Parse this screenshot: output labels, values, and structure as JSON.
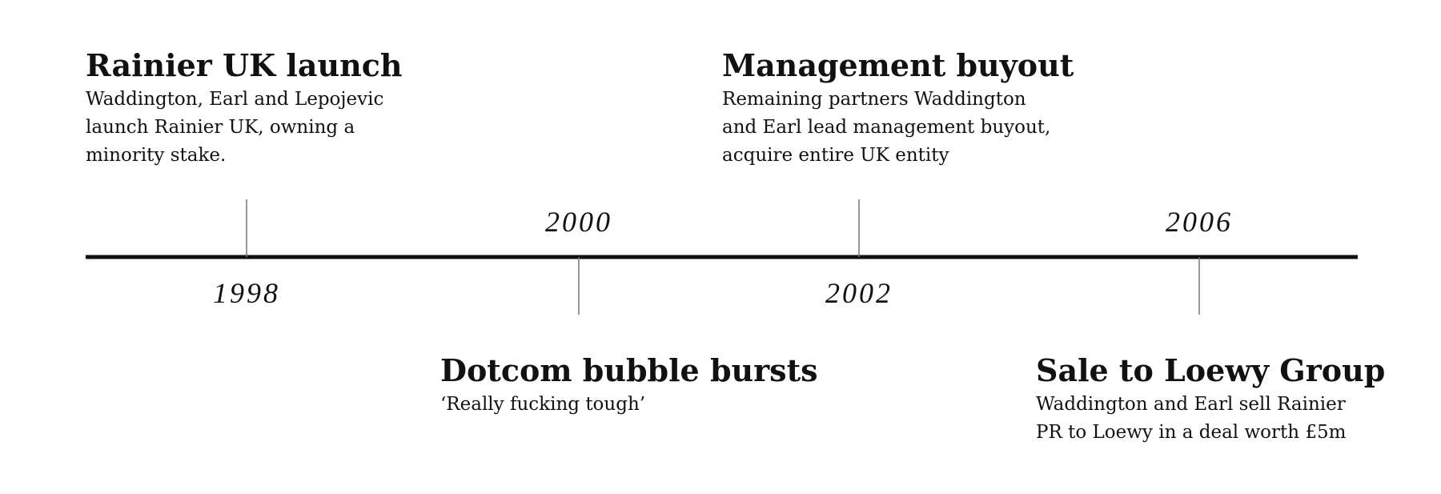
{
  "timeline": {
    "events": [
      {
        "year": "1998",
        "title": "Rainier UK launch",
        "description": [
          "Waddington, Earl and Lepojevic",
          "launch Rainier UK, owning a",
          "minority stake."
        ]
      },
      {
        "year": "2000",
        "title": "Dotcom bubble bursts",
        "description": [
          "‘Really fucking tough’"
        ]
      },
      {
        "year": "2002",
        "title": "Management buyout",
        "description": [
          "Remaining partners Waddington",
          "and Earl lead management buyout,",
          "acquire entire UK entity"
        ]
      },
      {
        "year": "2006",
        "title": "Sale to Loewy Group",
        "description": [
          "Waddington and Earl sell Rainier",
          "PR to Loewy in a deal worth £5m"
        ]
      }
    ]
  }
}
